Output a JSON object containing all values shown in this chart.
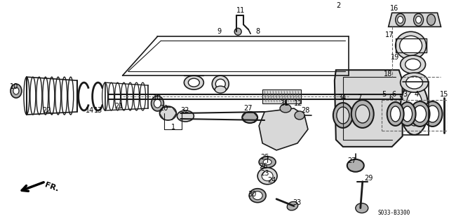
{
  "bg_color": "#ffffff",
  "fig_width": 6.4,
  "fig_height": 3.19,
  "line_color": "#1a1a1a",
  "text_color": "#000000",
  "catalog_num": "S033-B3300",
  "gray_light": "#d8d8d8",
  "gray_mid": "#b0b0b0",
  "gray_dark": "#888888"
}
